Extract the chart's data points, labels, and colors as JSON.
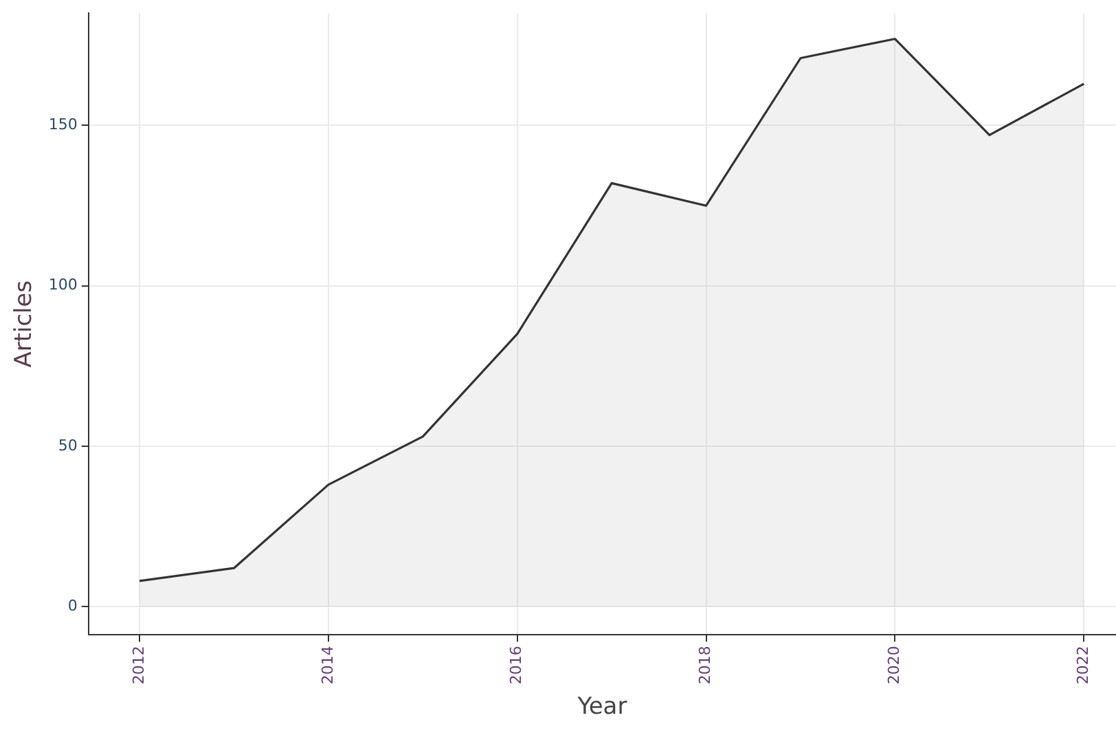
{
  "chart_data": {
    "type": "area",
    "xlabel": "Year",
    "ylabel": "Articles",
    "x": [
      2012,
      2013,
      2014,
      2015,
      2016,
      2017,
      2018,
      2019,
      2020,
      2021,
      2022
    ],
    "series": [
      {
        "color": "#333333",
        "values": [
          8,
          12,
          38,
          53,
          85,
          132,
          125,
          171,
          177,
          147,
          163
        ]
      }
    ],
    "xlim": [
      2011.46,
      2022.34
    ],
    "xticks": [
      2012,
      2014,
      2016,
      2018,
      2020,
      2022
    ],
    "ylim": [
      -8.8,
      185
    ],
    "yticks": [
      0,
      50,
      100,
      150
    ],
    "grid": true,
    "legend": false
  }
}
